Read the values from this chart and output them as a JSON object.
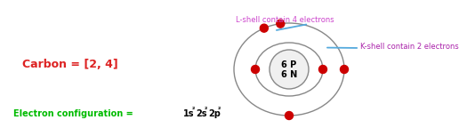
{
  "bg_color": "#ffffff",
  "nucleus_text_line1": "6 P",
  "nucleus_text_line2": "6 N",
  "nucleus_color": "#f0f0f0",
  "nucleus_border": "#888888",
  "shell_color": "#888888",
  "electron_color": "#cc0000",
  "label_lshell": "L-shell contain 4 electrons",
  "label_kshell": "K-shell contain 2 electrons",
  "label_lshell_color": "#cc44cc",
  "label_kshell_color": "#aa22aa",
  "label_carbon": "Carbon = [2, 4]",
  "label_carbon_color": "#dd2222",
  "label_config_prefix": "Electron configuration = ",
  "label_config_prefix_color": "#00bb00",
  "line_color": "#55aadd"
}
